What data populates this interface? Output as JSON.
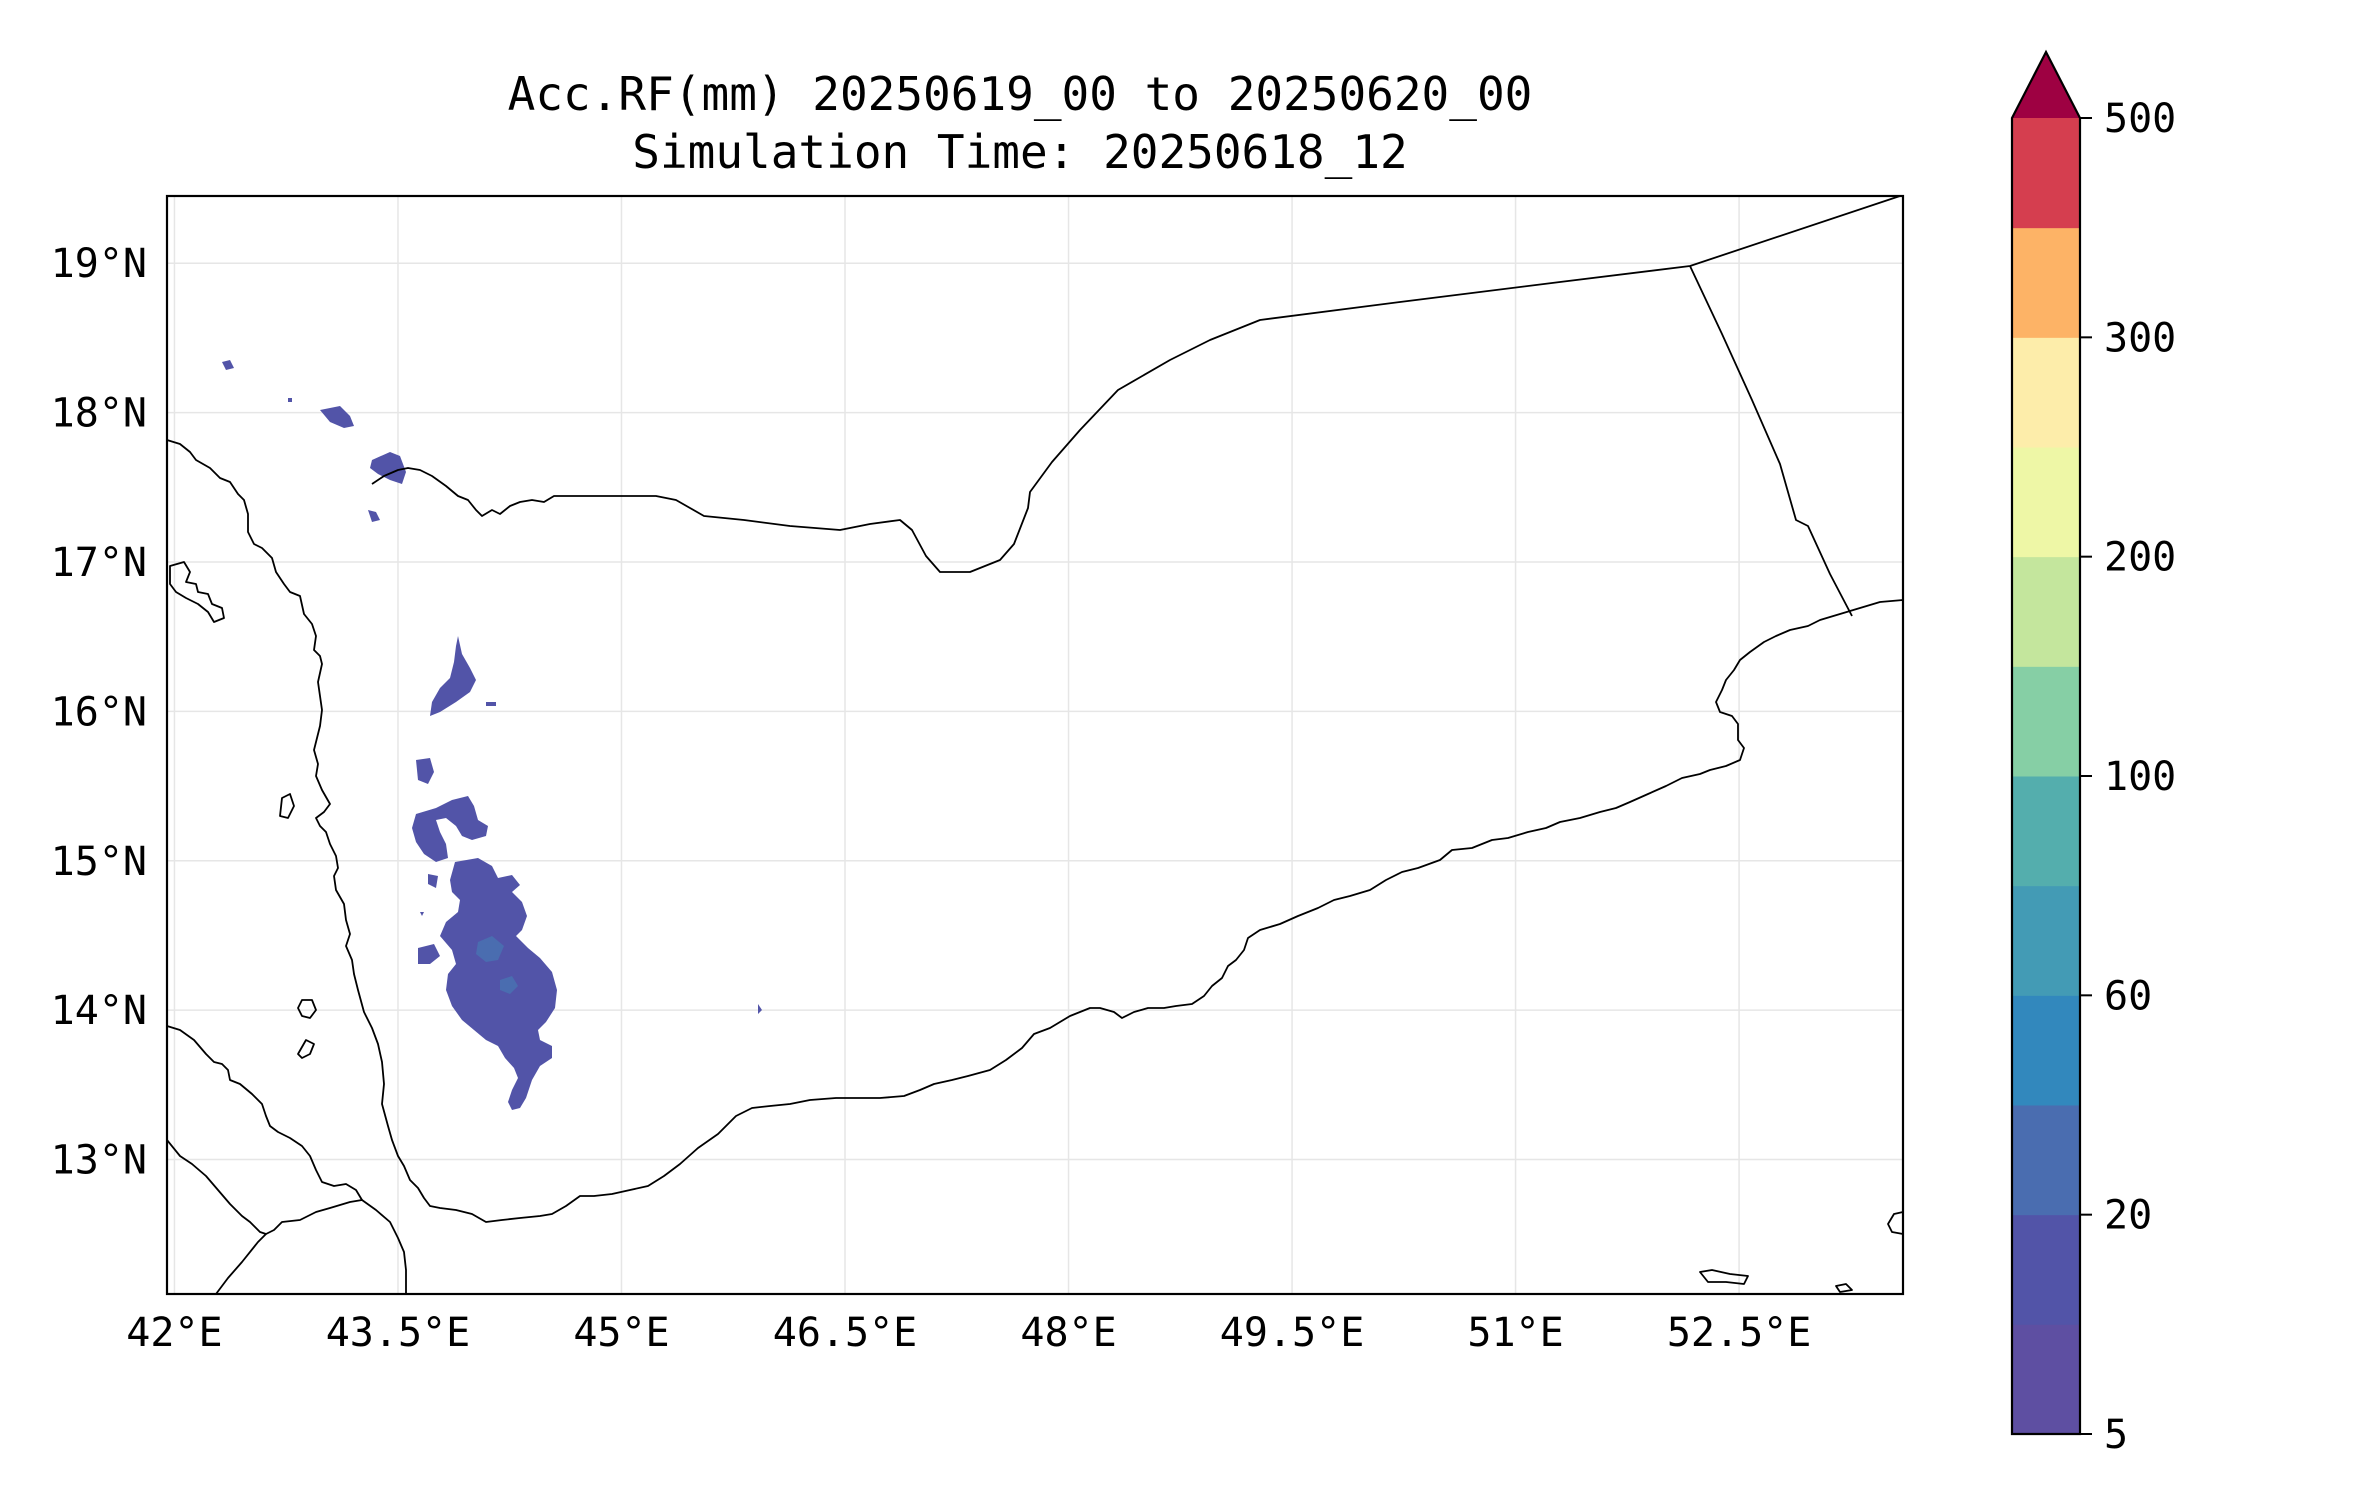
{
  "title": {
    "line1": "Acc.RF(mm) 20250619_00 to 20250620_00",
    "line2": "Simulation Time: 20250618_12"
  },
  "map": {
    "lon_range": [
      41.95,
      53.6
    ],
    "lat_range": [
      12.1,
      19.45
    ],
    "lon_ticks": [
      {
        "value": 42.0,
        "label": "42°E"
      },
      {
        "value": 43.5,
        "label": "43.5°E"
      },
      {
        "value": 45.0,
        "label": "45°E"
      },
      {
        "value": 46.5,
        "label": "46.5°E"
      },
      {
        "value": 48.0,
        "label": "48°E"
      },
      {
        "value": 49.5,
        "label": "49.5°E"
      },
      {
        "value": 51.0,
        "label": "51°E"
      },
      {
        "value": 52.5,
        "label": "52.5°E"
      }
    ],
    "lat_ticks": [
      {
        "value": 13.0,
        "label": "13°N"
      },
      {
        "value": 14.0,
        "label": "14°N"
      },
      {
        "value": 15.0,
        "label": "15°N"
      },
      {
        "value": 16.0,
        "label": "16°N"
      },
      {
        "value": 17.0,
        "label": "17°N"
      },
      {
        "value": 18.0,
        "label": "18°N"
      },
      {
        "value": 19.0,
        "label": "19°N"
      }
    ],
    "gridlines": true
  },
  "colorbar": {
    "levels": [
      5,
      10,
      20,
      40,
      60,
      80,
      100,
      150,
      200,
      250,
      300,
      350,
      500
    ],
    "colors": [
      "#5e4fa2",
      "#5254a8",
      "#4a6db0",
      "#3288bd",
      "#439bb5",
      "#54aead",
      "#86cfa5",
      "#c4e69d",
      "#eef7a6",
      "#fdedaa",
      "#fdb366",
      "#d53e4f"
    ],
    "extend_color": "#9e0142",
    "tick_labels": [
      {
        "level_index": 0,
        "label": "5"
      },
      {
        "level_index": 2,
        "label": "20"
      },
      {
        "level_index": 4,
        "label": "60"
      },
      {
        "level_index": 6,
        "label": "100"
      },
      {
        "level_index": 8,
        "label": "200"
      },
      {
        "level_index": 10,
        "label": "300"
      },
      {
        "level_index": 12,
        "label": "500"
      }
    ]
  }
}
